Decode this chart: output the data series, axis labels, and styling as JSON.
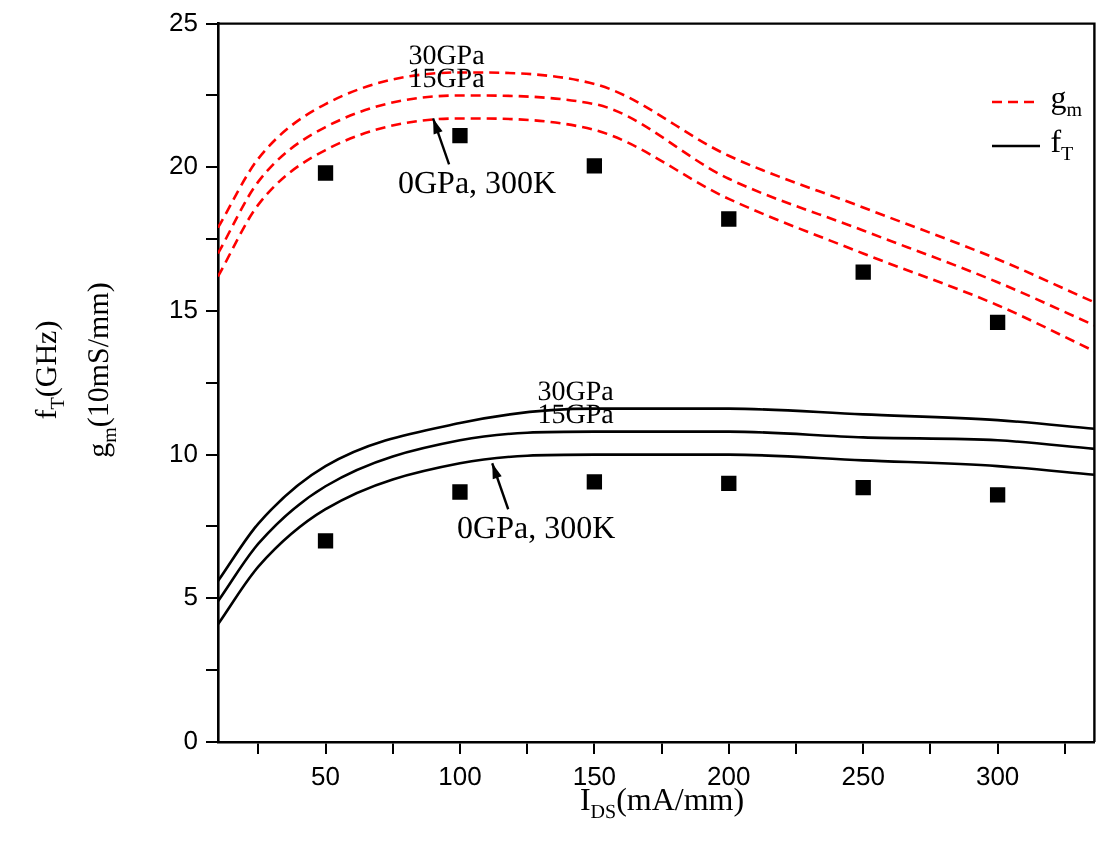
{
  "chart_data": {
    "type": "line",
    "xlabel": "I$_{DS}$(mA/mm)",
    "ylabel": "f$_{T}$(GHz)\ng$_{m}$(10mS/mm)",
    "xlim": [
      10,
      336
    ],
    "xticks": [
      {
        "value": 25,
        "label": null
      },
      50,
      {
        "value": 75,
        "label": null
      },
      100,
      {
        "value": 125,
        "label": null
      },
      150,
      {
        "value": 175,
        "label": null
      },
      200,
      {
        "value": 225,
        "label": null
      },
      250,
      {
        "value": 275,
        "label": null
      },
      300,
      {
        "value": 325,
        "label": null
      }
    ],
    "ylim": [
      0,
      25
    ],
    "yticks": [
      0,
      {
        "value": 2.5,
        "label": null
      },
      5,
      {
        "value": 7.5,
        "label": null
      },
      10,
      {
        "value": 12.5,
        "label": null
      },
      15,
      {
        "value": 17.5,
        "label": null
      },
      20,
      {
        "value": 22.5,
        "label": null
      },
      25
    ],
    "grid": false,
    "legend": "top right",
    "marker": "none",
    "series": [
      {
        "name": "g$_{m}$",
        "line_style": "dashed",
        "color": "#ff0000",
        "x": [
          10,
          25,
          50,
          100,
          150,
          200,
          250,
          300,
          336
        ],
        "values": [
          17.9,
          20.3,
          22.2,
          23.3,
          22.9,
          20.4,
          18.6,
          16.8,
          15.3
        ]
      },
      {
        "line_style": "dashed",
        "color": "#ff0000",
        "x": [
          10,
          25,
          50,
          100,
          150,
          200,
          250,
          300,
          336
        ],
        "values": [
          17.0,
          19.5,
          21.4,
          22.5,
          22.2,
          19.6,
          17.8,
          16.0,
          14.5
        ]
      },
      {
        "line_style": "dashed",
        "color": "#ff0000",
        "x": [
          10,
          25,
          50,
          100,
          150,
          200,
          250,
          300,
          336
        ],
        "values": [
          16.2,
          18.7,
          20.6,
          21.7,
          21.3,
          18.9,
          17.0,
          15.2,
          13.6
        ]
      },
      {
        "name": "f$_{T}$",
        "line_style": "solid",
        "color": "#000000",
        "x": [
          10,
          25,
          50,
          100,
          150,
          200,
          250,
          300,
          336
        ],
        "values": [
          5.6,
          7.6,
          9.6,
          11.1,
          11.6,
          11.6,
          11.4,
          11.2,
          10.9
        ]
      },
      {
        "line_style": "solid",
        "color": "#000000",
        "x": [
          10,
          25,
          50,
          100,
          150,
          200,
          250,
          300,
          336
        ],
        "values": [
          4.9,
          6.9,
          8.9,
          10.5,
          10.8,
          10.8,
          10.6,
          10.5,
          10.2
        ]
      },
      {
        "line_style": "solid",
        "color": "#000000",
        "x": [
          10,
          25,
          50,
          100,
          150,
          200,
          250,
          300,
          336
        ],
        "values": [
          4.1,
          6.1,
          8.1,
          9.7,
          10.0,
          10.0,
          9.8,
          9.6,
          9.3
        ]
      },
      {
        "type": "scatter",
        "marker": "square",
        "color": "#000000",
        "x": [
          50,
          100,
          150,
          200,
          250,
          300
        ],
        "values": [
          19.8,
          21.1,
          20.05,
          18.2,
          16.35,
          14.6
        ]
      },
      {
        "type": "scatter",
        "marker": "square",
        "color": "#000000",
        "x": [
          50,
          100,
          150,
          200,
          250,
          300
        ],
        "values": [
          7.0,
          8.7,
          9.05,
          9.0,
          8.85,
          8.6
        ]
      }
    ],
    "annotations": [
      {
        "text": "30GPa",
        "x": 95,
        "y": 23.3
      },
      {
        "text": "15GPa",
        "x": 95,
        "y": 22.5
      },
      {
        "text": "0GPa, 300K",
        "x": 90,
        "y": 21.7
      },
      {
        "text": "30GPa",
        "x": 143,
        "y": 11.6
      },
      {
        "text": "15GPa",
        "x": 143,
        "y": 10.8
      },
      {
        "text": "0GPa, 300K",
        "x": 112,
        "y": 9.7
      }
    ]
  }
}
